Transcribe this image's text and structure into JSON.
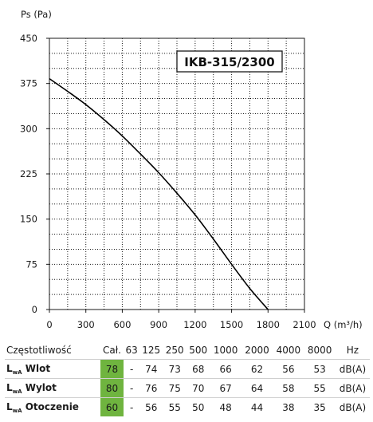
{
  "chart_data": {
    "type": "line",
    "title": "IKB-315/2300",
    "ylabel": "Ps (Pa)",
    "xlabel": "Q (m³/h)",
    "xlim": [
      0,
      2100
    ],
    "ylim": [
      0,
      450
    ],
    "x_ticks": [
      "0",
      "300",
      "600",
      "900",
      "1200",
      "1500",
      "1800",
      "2100"
    ],
    "y_ticks": [
      "0",
      "75",
      "150",
      "225",
      "300",
      "375",
      "450"
    ],
    "grid": true,
    "series": [
      {
        "x": [
          0,
          150,
          300,
          450,
          600,
          750,
          900,
          1050,
          1200,
          1350,
          1500,
          1650,
          1800
        ],
        "y": [
          383,
          362,
          340,
          315,
          288,
          258,
          227,
          193,
          157,
          117,
          75,
          35,
          0
        ]
      }
    ]
  },
  "table": {
    "header": {
      "label": "Częstotliwość",
      "total": "Cał.",
      "bands": [
        "63",
        "125",
        "250",
        "500",
        "1000",
        "2000",
        "4000",
        "8000"
      ],
      "unit": "Hz"
    },
    "lwa_main": "L",
    "lwa_sub": "wA",
    "rows": [
      {
        "label": "Wlot",
        "total": "78",
        "values": [
          "-",
          "74",
          "73",
          "68",
          "66",
          "62",
          "56",
          "53"
        ],
        "unit": "dB(A)"
      },
      {
        "label": "Wylot",
        "total": "80",
        "values": [
          "-",
          "76",
          "75",
          "70",
          "67",
          "64",
          "58",
          "55"
        ],
        "unit": "dB(A)"
      },
      {
        "label": "Otoczenie",
        "total": "60",
        "values": [
          "-",
          "56",
          "55",
          "50",
          "48",
          "44",
          "38",
          "35"
        ],
        "unit": "dB(A)"
      }
    ]
  },
  "colors": {
    "total_highlight": "#6fb43f",
    "curve": "#000000",
    "grid": "#1a1a1a"
  }
}
